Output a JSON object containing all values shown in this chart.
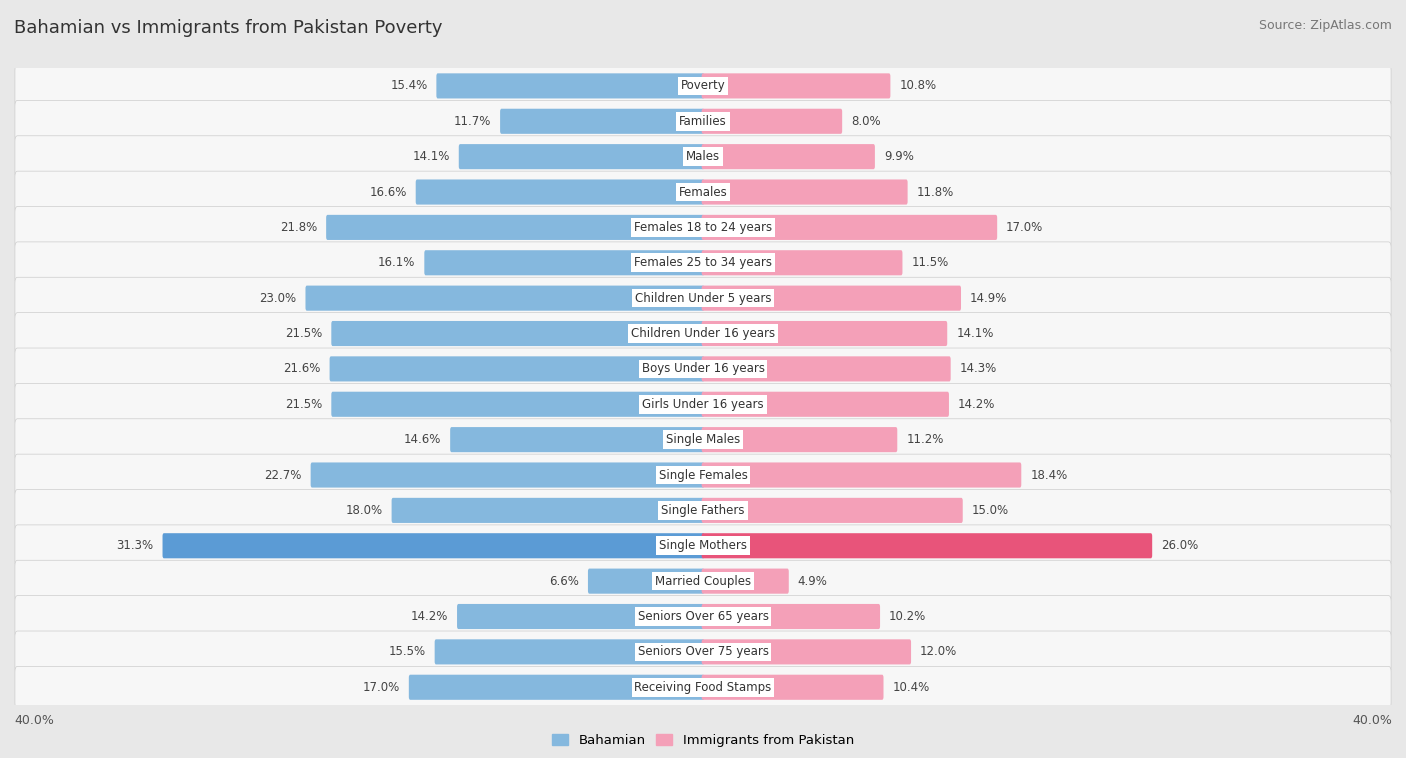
{
  "title": "Bahamian vs Immigrants from Pakistan Poverty",
  "source": "Source: ZipAtlas.com",
  "categories": [
    "Poverty",
    "Families",
    "Males",
    "Females",
    "Females 18 to 24 years",
    "Females 25 to 34 years",
    "Children Under 5 years",
    "Children Under 16 years",
    "Boys Under 16 years",
    "Girls Under 16 years",
    "Single Males",
    "Single Females",
    "Single Fathers",
    "Single Mothers",
    "Married Couples",
    "Seniors Over 65 years",
    "Seniors Over 75 years",
    "Receiving Food Stamps"
  ],
  "bahamian": [
    15.4,
    11.7,
    14.1,
    16.6,
    21.8,
    16.1,
    23.0,
    21.5,
    21.6,
    21.5,
    14.6,
    22.7,
    18.0,
    31.3,
    6.6,
    14.2,
    15.5,
    17.0
  ],
  "pakistan": [
    10.8,
    8.0,
    9.9,
    11.8,
    17.0,
    11.5,
    14.9,
    14.1,
    14.3,
    14.2,
    11.2,
    18.4,
    15.0,
    26.0,
    4.9,
    10.2,
    12.0,
    10.4
  ],
  "bahamian_color": "#85b8de",
  "pakistan_color": "#f4a0b8",
  "single_mothers_bahamian_color": "#5b9bd5",
  "single_mothers_pakistan_color": "#e8547a",
  "bg_color": "#e8e8e8",
  "row_bg_color": "#f7f7f7",
  "xlim": 40.0,
  "legend_labels": [
    "Bahamian",
    "Immigrants from Pakistan"
  ],
  "title_fontsize": 13,
  "source_fontsize": 9,
  "label_fontsize": 8.5,
  "cat_fontsize": 8.5
}
